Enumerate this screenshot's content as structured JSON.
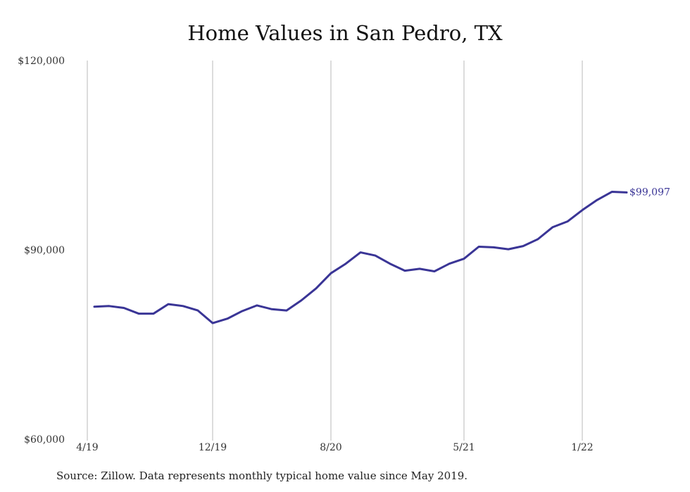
{
  "chart_data": {
    "type": "line",
    "title": "Home Values in San Pedro, TX",
    "source_note": "Source: Zillow. Data represents monthly typical home value since May 2019.",
    "color": "#3a3596",
    "grid": "vertical",
    "ylim": [
      60000,
      120000
    ],
    "yticks": [
      {
        "value": 60000,
        "label": "$60,000"
      },
      {
        "value": 90000,
        "label": "$90,000"
      },
      {
        "value": 120000,
        "label": "$120,000"
      }
    ],
    "xticks": [
      {
        "index": 0,
        "label": "4/19"
      },
      {
        "index": 8,
        "label": "12/19"
      },
      {
        "index": 16,
        "label": "8/20"
      },
      {
        "index": 25,
        "label": "5/21"
      },
      {
        "index": 33,
        "label": "1/22"
      }
    ],
    "end_label": "$99,097",
    "series": [
      {
        "values": [
          81000,
          81100,
          80800,
          79900,
          79900,
          81400,
          81100,
          80400,
          78400,
          79100,
          80300,
          81200,
          80600,
          80400,
          82000,
          83900,
          86300,
          87800,
          89600,
          89100,
          87800,
          86700,
          87000,
          86600,
          87800,
          88600,
          90500,
          90400,
          90100,
          90600,
          91700,
          93600,
          94500,
          96300,
          97900,
          99200,
          99097
        ]
      }
    ]
  }
}
